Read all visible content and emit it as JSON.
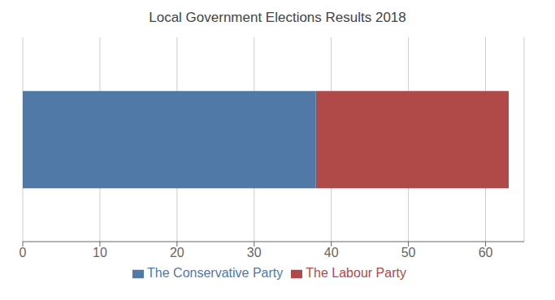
{
  "chart_data": {
    "type": "bar",
    "title": "Local Government Elections Results 2018",
    "orientation": "horizontal",
    "stacked": true,
    "categories": [
      null
    ],
    "series": [
      {
        "name": "The Conservative Party",
        "color": "#5079a8",
        "values": [
          38
        ]
      },
      {
        "name": "The Labour Party",
        "color": "#b04a48",
        "values": [
          25
        ]
      }
    ],
    "xlim": [
      0,
      65
    ],
    "xticks": [
      0,
      10,
      20,
      30,
      40,
      50,
      60
    ],
    "grid": true,
    "legend": "bottom",
    "tick_labels": "x"
  }
}
